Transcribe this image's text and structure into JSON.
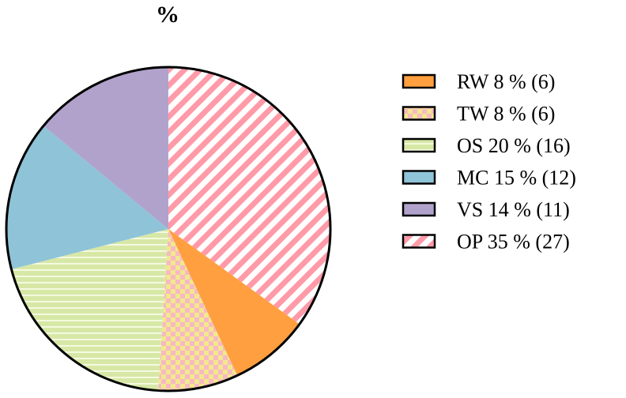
{
  "chart_data": {
    "type": "pie",
    "title": "%",
    "start_angle_deg": 0,
    "direction": "clockwise",
    "legend_position": "right",
    "slices": [
      {
        "label": "OP",
        "percent": 35,
        "count": 27,
        "legend_text": "OP  35 %  (27)",
        "color": "#ff9aa8",
        "pattern": "diagonal-stripes"
      },
      {
        "label": "RW",
        "percent": 8,
        "count": 6,
        "legend_text": "RW 8 %  (6)",
        "color": "#ff9f40",
        "pattern": "solid"
      },
      {
        "label": "TW",
        "percent": 8,
        "count": 6,
        "legend_text": "TW 8 %  (6)",
        "color": "#f2e88c",
        "pattern": "checkerboard"
      },
      {
        "label": "OS",
        "percent": 20,
        "count": 16,
        "legend_text": "OS  20 %  (16)",
        "color": "#d7e8a6",
        "pattern": "horizontal-lines"
      },
      {
        "label": "MC",
        "percent": 15,
        "count": 12,
        "legend_text": "MC 15 %  (12)",
        "color": "#8fc3d8",
        "pattern": "solid"
      },
      {
        "label": "VS",
        "percent": 14,
        "count": 11,
        "legend_text": "VS  14 %  (11)",
        "color": "#b1a2cc",
        "pattern": "solid"
      }
    ],
    "legend_order": [
      "RW",
      "TW",
      "OS",
      "MC",
      "VS",
      "OP"
    ]
  }
}
